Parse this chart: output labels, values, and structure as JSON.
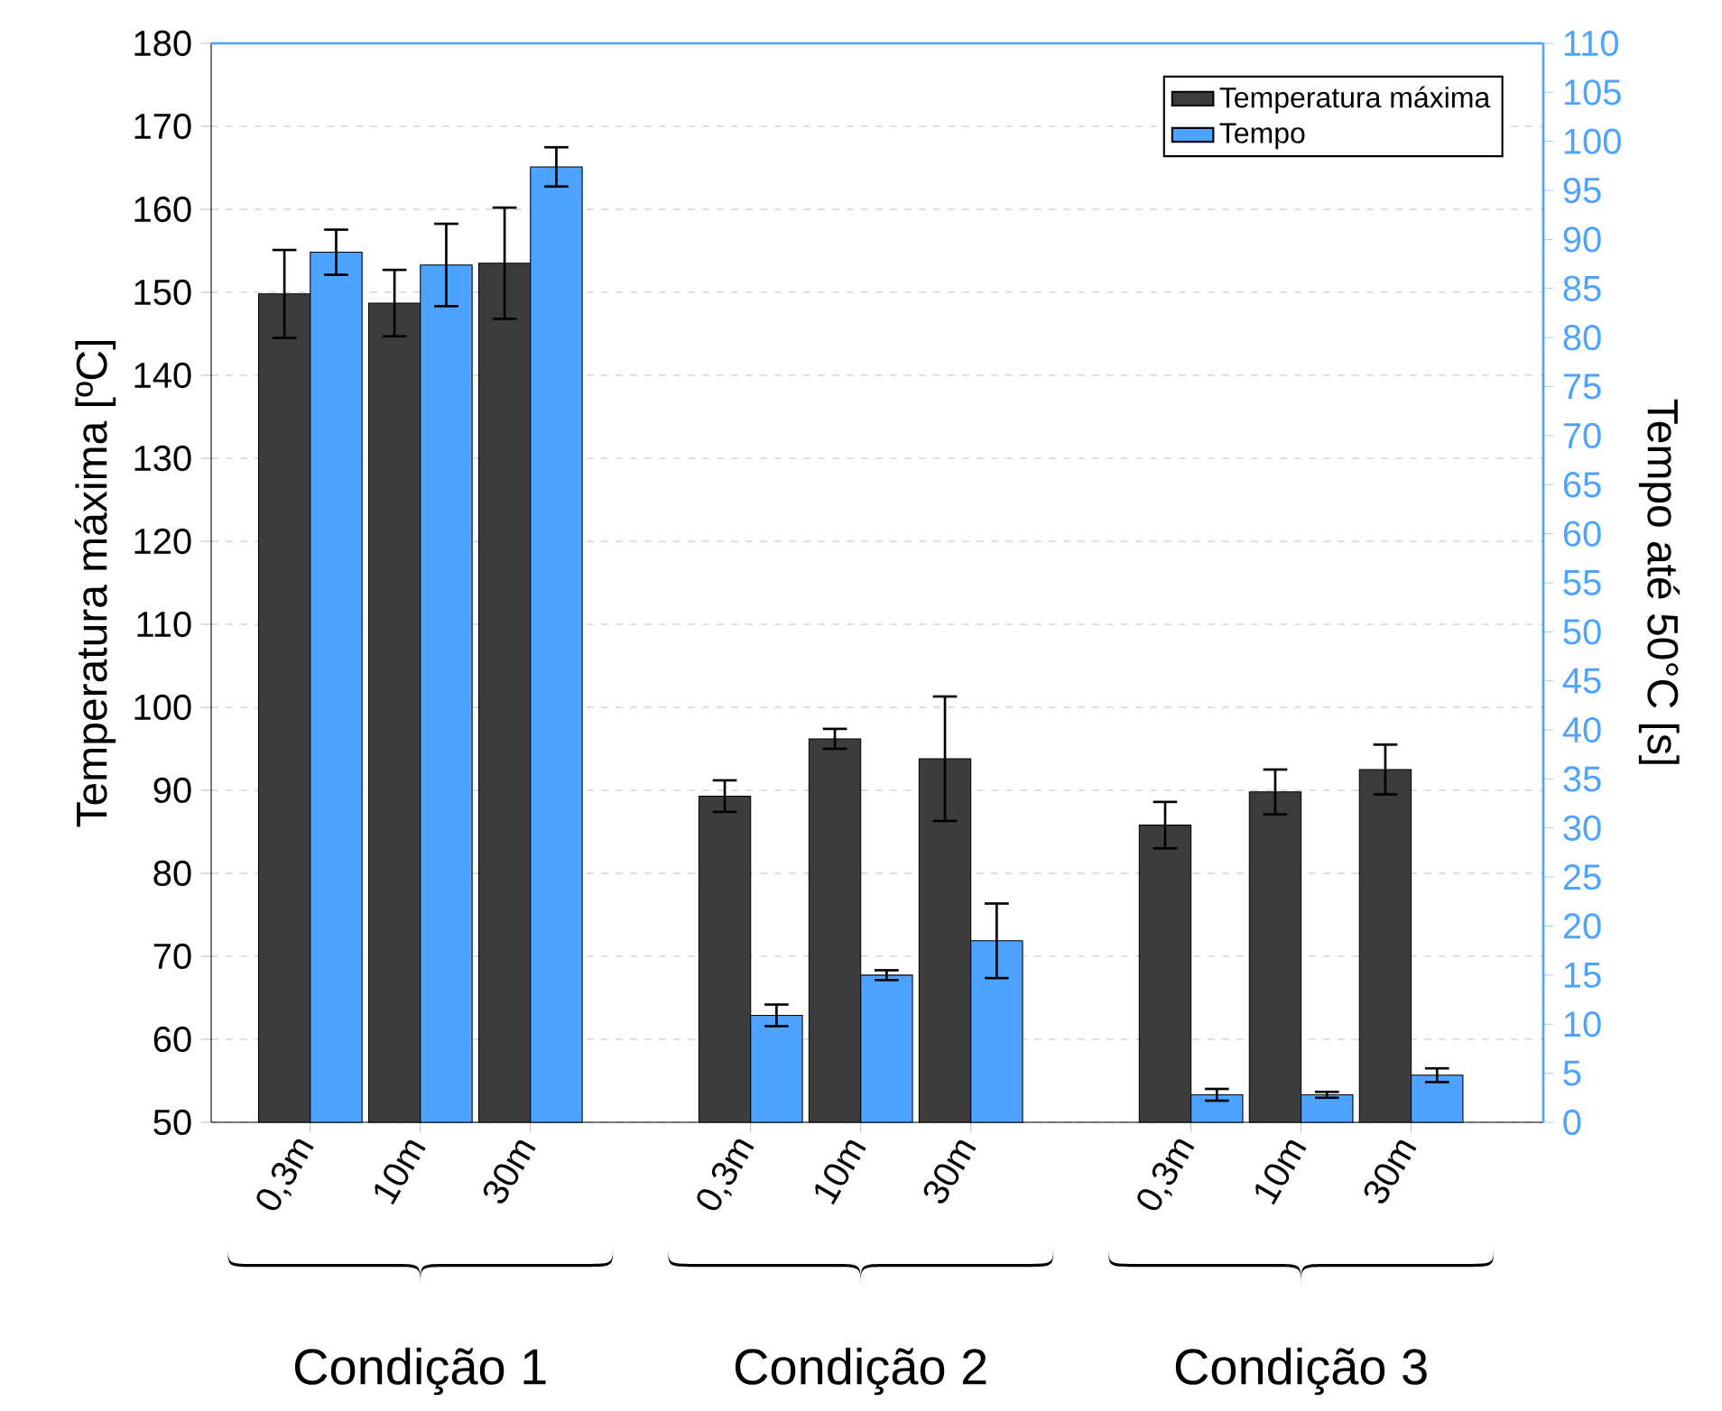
{
  "chart_data": {
    "type": "bar",
    "categories": [
      "0,3m",
      "10m",
      "30m",
      null,
      "0,3m",
      "10m",
      "30m",
      null,
      "0,3m",
      "10m",
      "30m"
    ],
    "series": [
      {
        "name": "Temperatura máxima",
        "color": "#3c3c3c",
        "values": [
          149.8,
          148.7,
          153.5,
          null,
          89.3,
          96.2,
          93.8,
          null,
          85.8,
          89.8,
          92.5
        ],
        "errors": [
          5.3,
          4,
          6.7,
          null,
          1.9,
          1.2,
          7.5,
          null,
          2.8,
          2.7,
          3
        ]
      },
      {
        "name": "Tempo",
        "color": "#4da3ff",
        "axis": "y2",
        "values": [
          88.7,
          87.4,
          97.4,
          null,
          10.9,
          15,
          18.5,
          null,
          2.8,
          2.8,
          4.8
        ],
        "errors": [
          2.3,
          4.2,
          2,
          null,
          1.1,
          0.5,
          3.8,
          null,
          0.6,
          0.3,
          0.7
        ]
      }
    ],
    "ylabel": "Temperatura máxima [ºC]",
    "y2label": "Tempo até 50°C [s]",
    "ylim": [
      50,
      180
    ],
    "yticks": [
      50,
      60,
      70,
      80,
      90,
      100,
      110,
      120,
      130,
      140,
      150,
      160,
      170,
      180
    ],
    "y2lim": [
      0,
      110
    ],
    "y2ticks": [
      0,
      5,
      10,
      15,
      20,
      25,
      30,
      35,
      40,
      45,
      50,
      55,
      60,
      65,
      70,
      75,
      80,
      85,
      90,
      95,
      100,
      105,
      110
    ],
    "annotations": [
      "Condição 1",
      "Condição 2",
      "Condição 3"
    ],
    "grid": "y",
    "legend": "top right"
  }
}
